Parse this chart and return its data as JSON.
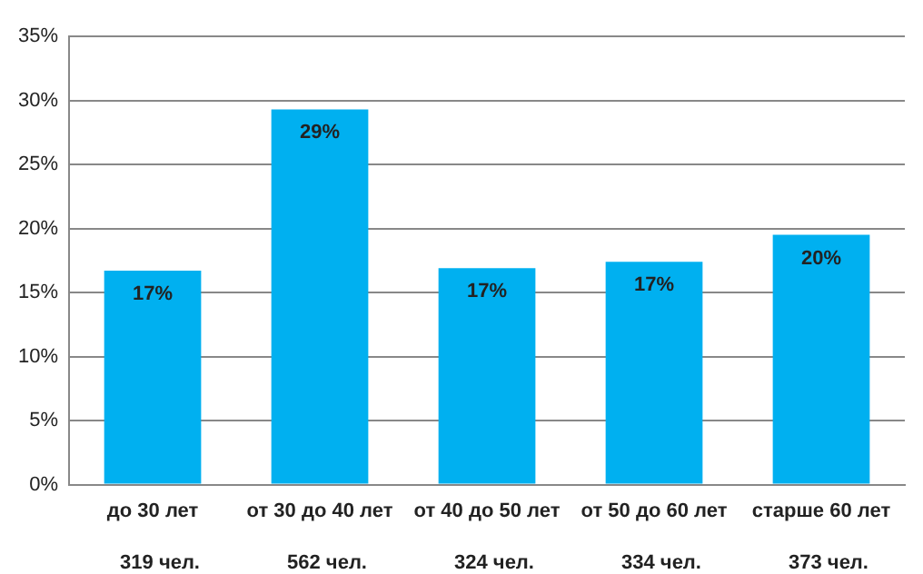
{
  "chart_data": {
    "type": "bar",
    "categories": [
      "до 30 лет",
      "от 30 до 40 лет",
      "от 40 до 50 лет",
      "от 50 до 60 лет",
      "старше 60 лет"
    ],
    "values": [
      16.7,
      29.3,
      16.9,
      17.4,
      19.5
    ],
    "value_labels": [
      "17%",
      "29%",
      "17%",
      "17%",
      "20%"
    ],
    "color": "#00b0f0",
    "ylim": [
      0,
      35
    ],
    "yticks": [
      {
        "value": 0,
        "label": "0%"
      },
      {
        "value": 5,
        "label": "5%"
      },
      {
        "value": 10,
        "label": "10%"
      },
      {
        "value": 15,
        "label": "15%"
      },
      {
        "value": 20,
        "label": "20%"
      },
      {
        "value": 25,
        "label": "25%"
      },
      {
        "value": 30,
        "label": "30%"
      },
      {
        "value": 35,
        "label": "35%"
      }
    ],
    "annotations": [
      "319 чел.",
      "562 чел.",
      "324 чел.",
      "334 чел.",
      "373 чел."
    ],
    "grid": "y",
    "legend": false
  }
}
